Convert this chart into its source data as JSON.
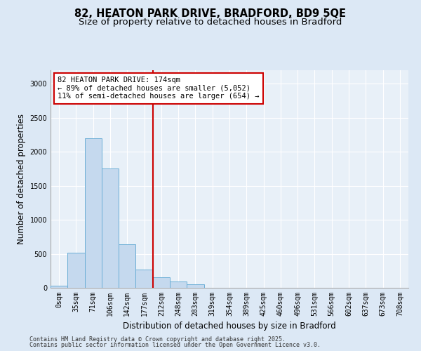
{
  "title_line1": "82, HEATON PARK DRIVE, BRADFORD, BD9 5QE",
  "title_line2": "Size of property relative to detached houses in Bradford",
  "xlabel": "Distribution of detached houses by size in Bradford",
  "ylabel": "Number of detached properties",
  "categories": [
    "0sqm",
    "35sqm",
    "71sqm",
    "106sqm",
    "142sqm",
    "177sqm",
    "212sqm",
    "248sqm",
    "283sqm",
    "319sqm",
    "354sqm",
    "389sqm",
    "425sqm",
    "460sqm",
    "496sqm",
    "531sqm",
    "566sqm",
    "602sqm",
    "637sqm",
    "673sqm",
    "708sqm"
  ],
  "values": [
    30,
    520,
    2200,
    1750,
    635,
    270,
    155,
    90,
    50,
    0,
    0,
    0,
    0,
    0,
    0,
    0,
    0,
    0,
    0,
    0,
    0
  ],
  "bar_color": "#c5d9ee",
  "bar_edge_color": "#6baed6",
  "bar_linewidth": 0.7,
  "vline_x_idx": 5,
  "vline_color": "#cc0000",
  "annotation_text_line1": "82 HEATON PARK DRIVE: 174sqm",
  "annotation_text_line2": "← 89% of detached houses are smaller (5,052)",
  "annotation_text_line3": "11% of semi-detached houses are larger (654) →",
  "annotation_box_color": "#cc0000",
  "ylim": [
    0,
    3200
  ],
  "yticks": [
    0,
    500,
    1000,
    1500,
    2000,
    2500,
    3000
  ],
  "footnote_line1": "Contains HM Land Registry data © Crown copyright and database right 2025.",
  "footnote_line2": "Contains public sector information licensed under the Open Government Licence v3.0.",
  "bg_color": "#dce8f5",
  "plot_bg_color": "#e8f0f8",
  "grid_color": "#ffffff",
  "title_fontsize": 10.5,
  "subtitle_fontsize": 9.5,
  "axis_label_fontsize": 8.5,
  "tick_fontsize": 7,
  "footnote_fontsize": 6,
  "annotation_fontsize": 7.5
}
